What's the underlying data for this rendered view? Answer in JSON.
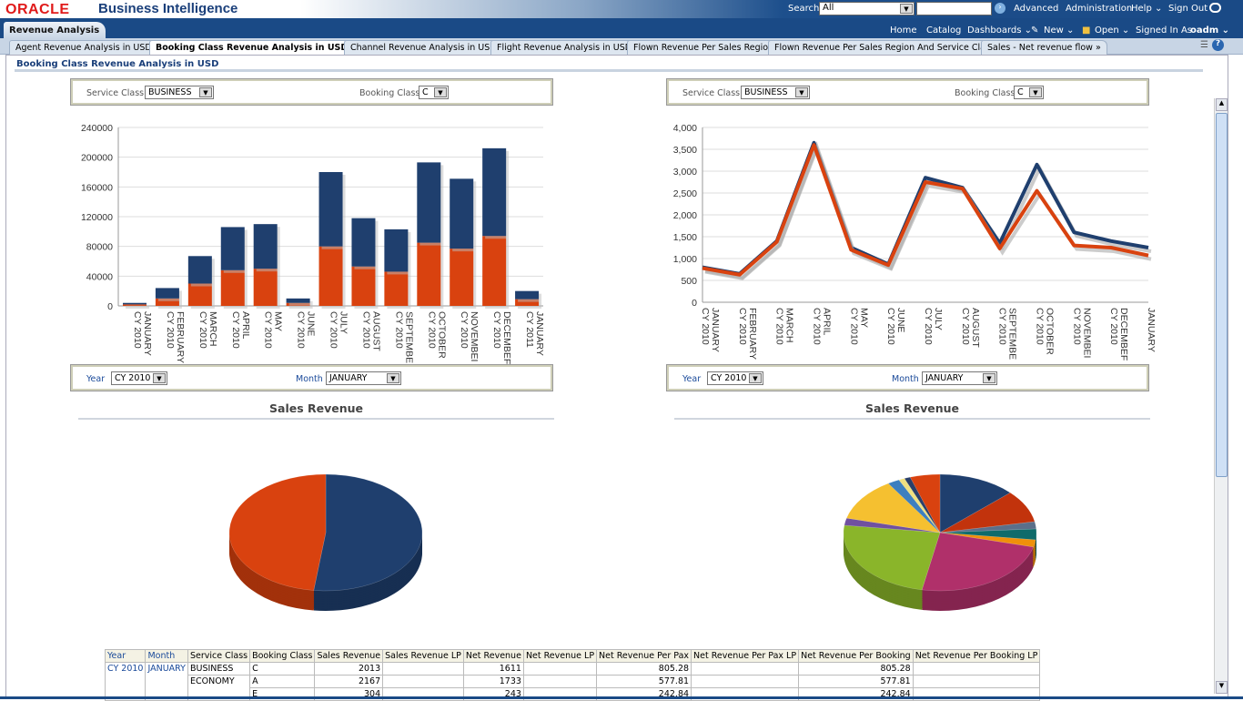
{
  "header": {
    "logo": "ORACLE",
    "product": "Business Intelligence",
    "search_label": "Search",
    "search_scope": "All",
    "advanced": "Advanced",
    "administration": "Administration",
    "help": "Help ⌄",
    "sign_out": "Sign Out"
  },
  "nav": {
    "dashboard_tab": "Revenue Analysis",
    "home": "Home",
    "catalog": "Catalog",
    "dashboards": "Dashboards ⌄",
    "new": "New ⌄",
    "open": "Open ⌄",
    "signed_in_as": "Signed In As",
    "user": "oadm ⌄"
  },
  "tabs": [
    "Agent Revenue Analysis in USD",
    "Booking Class Revenue Analysis in USD",
    "Channel Revenue Analysis in USD",
    "Flight Revenue Analysis in USD",
    "Flown Revenue Per Sales Region",
    "Flown Revenue Per Sales Region And Service Class",
    "Sales - Net revenue flow »"
  ],
  "page_title": "Booking Class Revenue Analysis in USD",
  "left": {
    "service_class_label": "Service Class",
    "service_class": "BUSINESS",
    "booking_class_label": "Booking Class",
    "booking_class": "C",
    "year_label": "Year",
    "year": "CY 2010",
    "month_label": "Month",
    "month": "JANUARY",
    "section_title": "Sales Revenue"
  },
  "right": {
    "service_class_label": "Service Class",
    "service_class": "BUSINESS",
    "booking_class_label": "Booking Class",
    "booking_class": "C",
    "year_label": "Year",
    "year": "CY 2010",
    "month_label": "Month",
    "month": "JANUARY",
    "section_title": "Sales Revenue"
  },
  "colors": {
    "blue": "#1f3f6e",
    "orange": "#d9420f",
    "brand": "#1a4a86"
  },
  "chart_data": [
    {
      "type": "bar",
      "stacked": true,
      "categories": [
        "CY 2010 JANUARY",
        "CY 2010 FEBRUARY",
        "CY 2010 MARCH",
        "CY 2010 APRIL",
        "CY 2010 MAY",
        "CY 2010 JUNE",
        "CY 2010 JULY",
        "CY 2010 AUGUST",
        "CY 2010 SEPTEMBE",
        "CY 2010 OCTOBER",
        "CY 2010 NOVEMBEI",
        "CY 2010 DECEMBEF",
        "CY 2011 JANUARY"
      ],
      "series": [
        {
          "name": "Net Revenue",
          "color": "#d9420f",
          "values": [
            2000,
            10000,
            30000,
            48000,
            50000,
            4000,
            80000,
            53000,
            46000,
            85000,
            77000,
            94000,
            9000
          ]
        },
        {
          "name": "Sales Revenue",
          "color": "#1f3f6e",
          "values": [
            2000,
            14000,
            37000,
            58000,
            60000,
            6000,
            100000,
            65000,
            57000,
            108000,
            94000,
            118000,
            11000
          ]
        }
      ],
      "ylim": [
        0,
        240000
      ],
      "yticks": [
        "0",
        "40000",
        "80000",
        "120000",
        "160000",
        "200000",
        "240000"
      ],
      "grid": true
    },
    {
      "type": "line",
      "categories": [
        "CY 2010 JANUARY",
        "CY 2010 FEBRUARY",
        "CY 2010 MARCH",
        "CY 2010 APRIL",
        "CY 2010 MAY",
        "CY 2010 JUNE",
        "CY 2010 JULY",
        "CY 2010 AUGUST",
        "CY 2010 SEPTEMBE",
        "CY 2010 OCTOBER",
        "CY 2010 NOVEMBEI",
        "CY 2010 DECEMBEF",
        "JANUARY"
      ],
      "series": [
        {
          "name": "Sales Revenue",
          "color": "#1f3f6e",
          "values": [
            800,
            650,
            1400,
            3650,
            1250,
            870,
            2850,
            2620,
            1350,
            3150,
            1600,
            1400,
            1250
          ]
        },
        {
          "name": "Net Revenue",
          "color": "#d9420f",
          "values": [
            780,
            630,
            1380,
            3600,
            1200,
            850,
            2750,
            2600,
            1230,
            2550,
            1300,
            1250,
            1070
          ]
        }
      ],
      "ylim": [
        0,
        4000
      ],
      "yticks": [
        "0",
        "500",
        "1,000",
        "1,500",
        "2,000",
        "2,500",
        "3,000",
        "3,500",
        "4,000"
      ],
      "grid": true
    },
    {
      "type": "pie",
      "title": "Sales Revenue",
      "slices": [
        {
          "value": 52,
          "color": "#1f3f6e"
        },
        {
          "value": 48,
          "color": "#d9420f"
        }
      ]
    },
    {
      "type": "pie",
      "title": "Sales Revenue",
      "slices": [
        {
          "value": 13,
          "color": "#1f3f6e"
        },
        {
          "value": 9,
          "color": "#c2330c"
        },
        {
          "value": 2,
          "color": "#5b6f8a"
        },
        {
          "value": 3,
          "color": "#0f6b6b"
        },
        {
          "value": 2,
          "color": "#f0900a"
        },
        {
          "value": 24,
          "color": "#b0306a"
        },
        {
          "value": 24,
          "color": "#8ab52a"
        },
        {
          "value": 2,
          "color": "#7050a0"
        },
        {
          "value": 12,
          "color": "#f5c030"
        },
        {
          "value": 2,
          "color": "#3d7fbf"
        },
        {
          "value": 1,
          "color": "#f0e080"
        },
        {
          "value": 1,
          "color": "#2a3f6a"
        },
        {
          "value": 5,
          "color": "#d9420f"
        }
      ]
    }
  ],
  "table": {
    "headers": [
      "Year",
      "Month",
      "Service Class",
      "Booking Class",
      "Sales Revenue",
      "Sales Revenue LP",
      "Net Revenue",
      "Net Revenue LP",
      "Net Revenue Per Pax",
      "Net Revenue Per Pax LP",
      "Net Revenue Per Booking",
      "Net Revenue Per Booking LP"
    ],
    "year": "CY 2010",
    "month": "JANUARY",
    "rows": [
      {
        "service": "BUSINESS",
        "booking": "C",
        "sales": "2013",
        "net": "1611",
        "pax": "805.28",
        "booking_rev": "805.28"
      },
      {
        "service": "ECONOMY",
        "booking": "A",
        "sales": "2167",
        "net": "1733",
        "pax": "577.81",
        "booking_rev": "577.81"
      },
      {
        "service": "",
        "booking": "E",
        "sales": "304",
        "net": "243",
        "pax": "242.84",
        "booking_rev": "242.84"
      }
    ]
  }
}
